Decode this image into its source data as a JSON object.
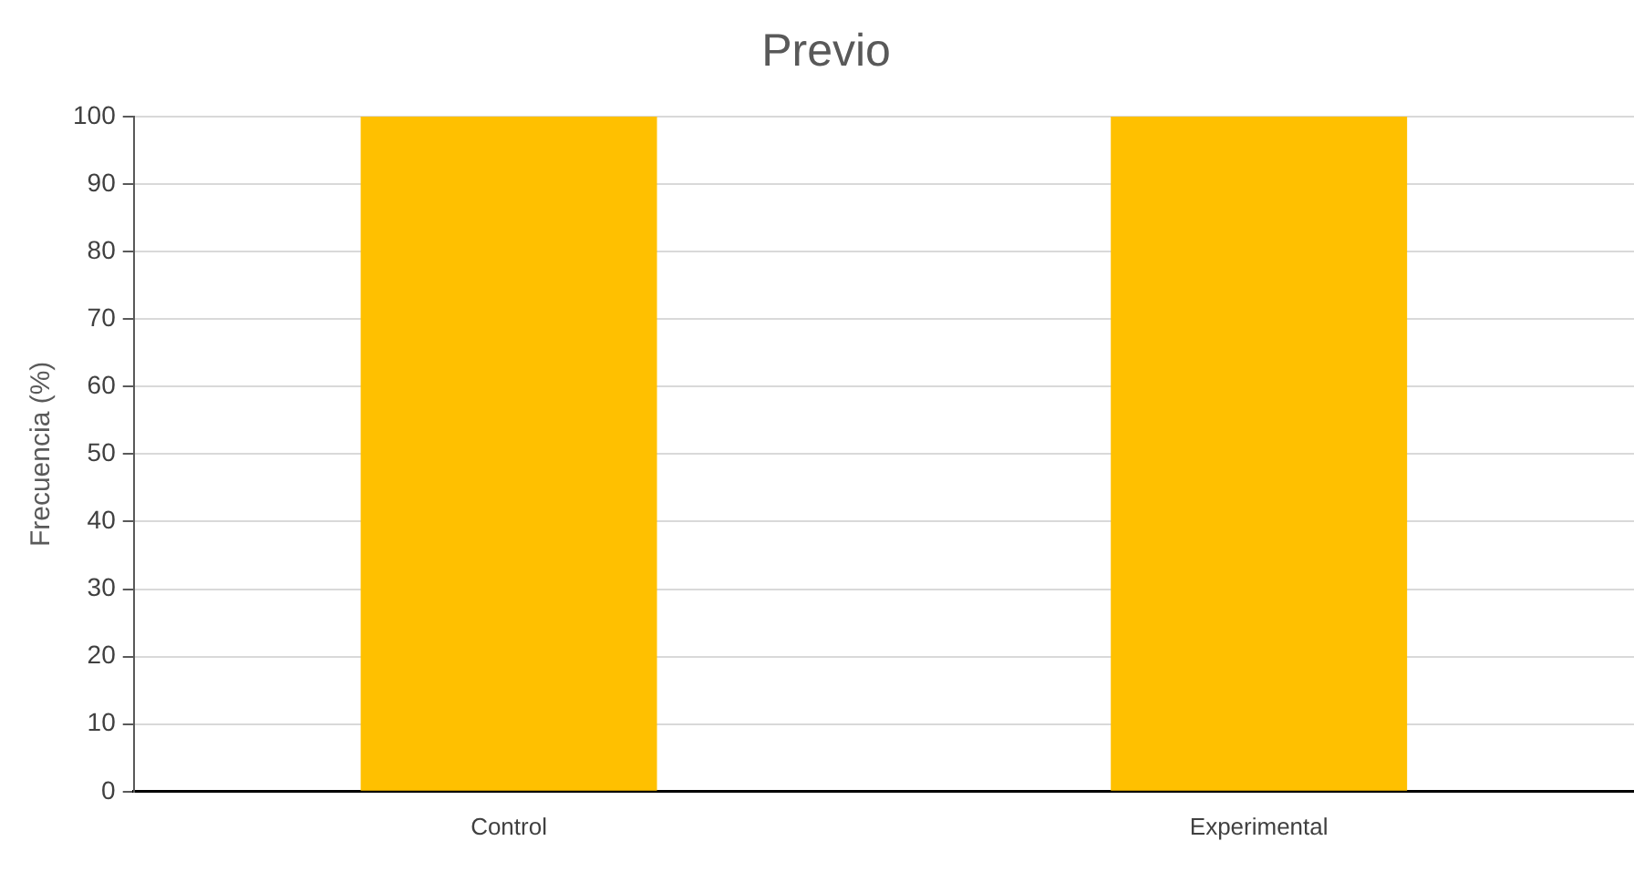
{
  "chart_data": {
    "type": "bar",
    "title": "Previo",
    "ylabel": "Frecuencia (%)",
    "categories": [
      "Control",
      "Experimental"
    ],
    "series": [
      {
        "color": "#ffc000",
        "values": [
          100,
          100
        ]
      }
    ],
    "ylim": [
      0,
      100
    ],
    "yticks": [
      0,
      10,
      20,
      30,
      40,
      50,
      60,
      70,
      80,
      90,
      100
    ],
    "grid": "y",
    "legend": false
  }
}
